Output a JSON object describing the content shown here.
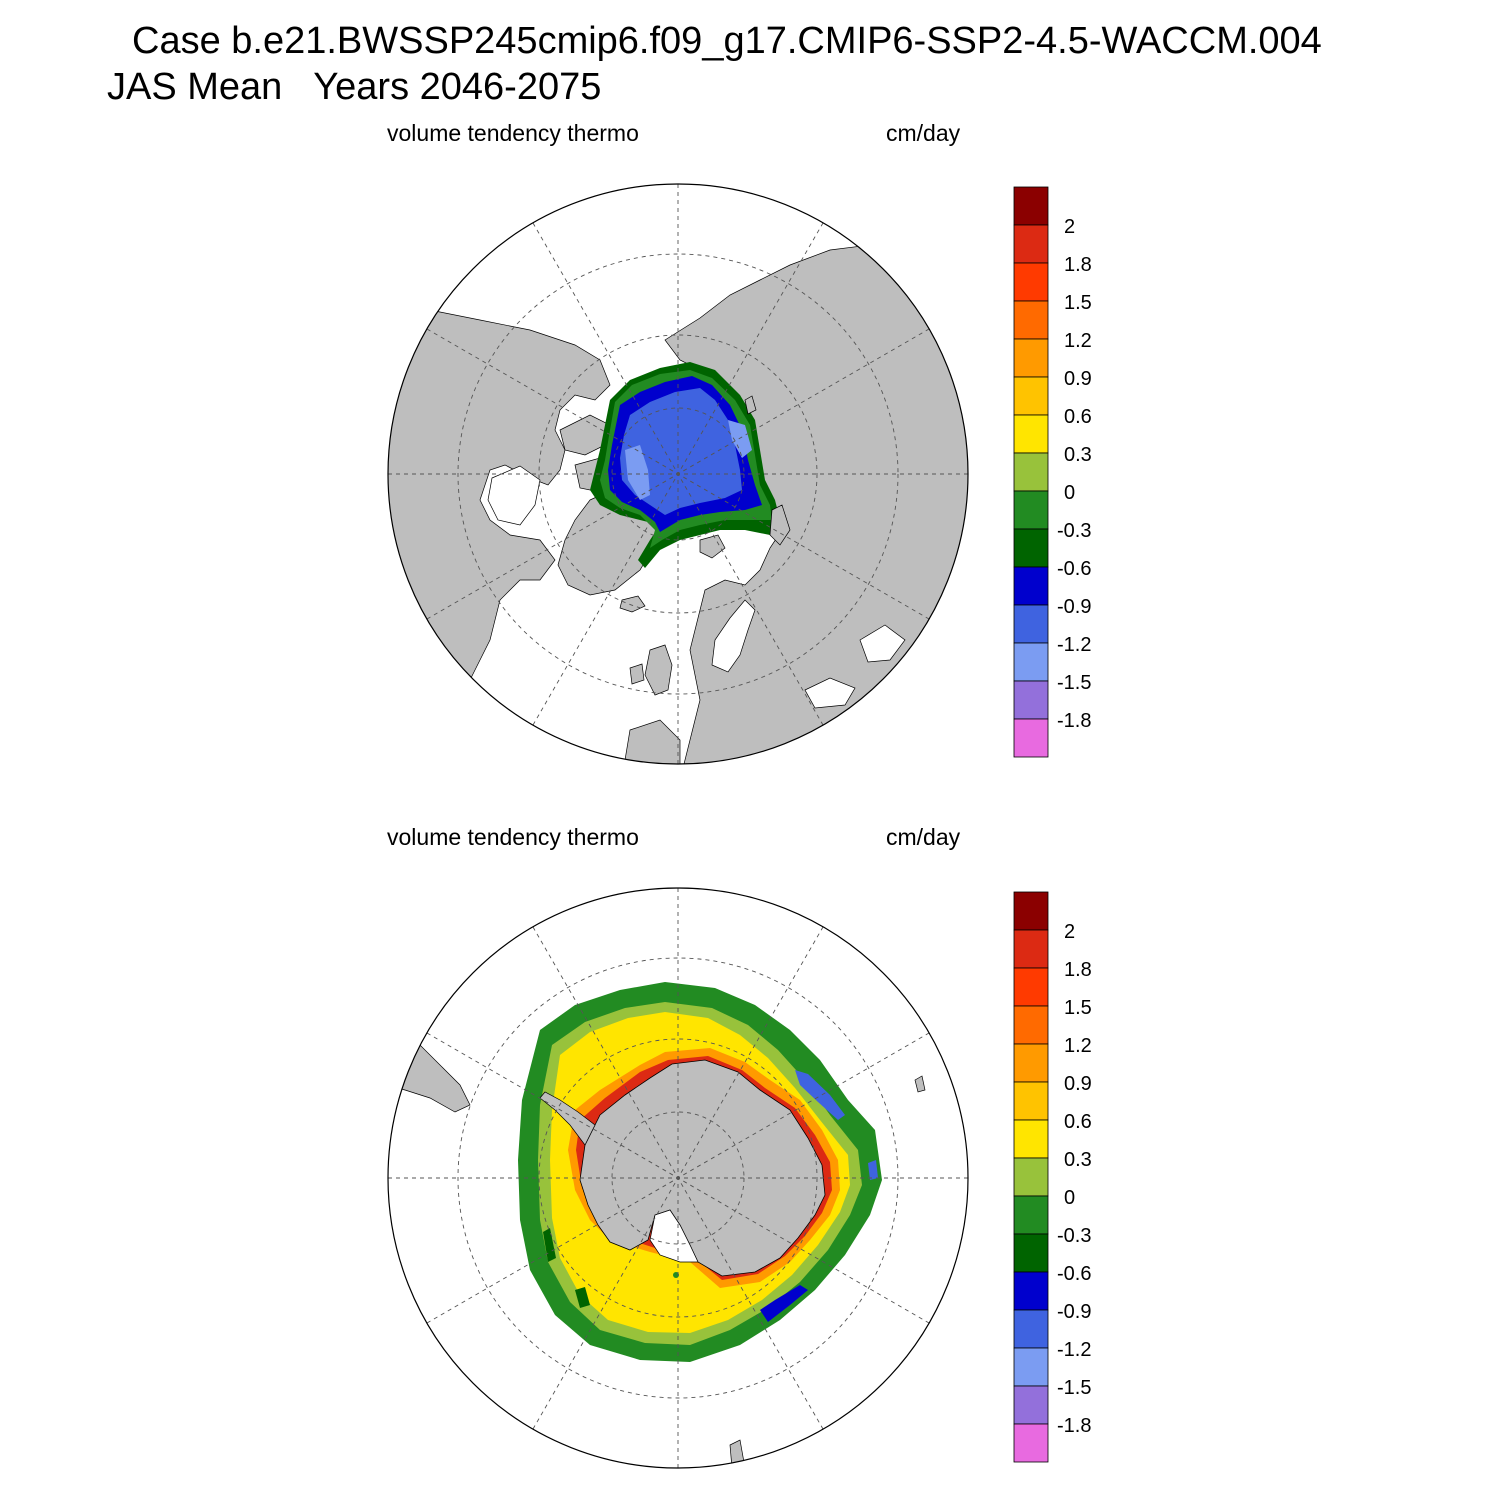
{
  "figure": {
    "title_line1": "Case b.e21.BWSSP245cmip6.f09_g17.CMIP6-SSP2-4.5-WACCM.004",
    "title_line2": "JAS Mean   Years 2046-2075"
  },
  "panels": [
    {
      "hemisphere": "north",
      "left_label": "volume tendency thermo",
      "right_label": "cm/day"
    },
    {
      "hemisphere": "south",
      "left_label": "volume tendency thermo",
      "right_label": "cm/day"
    }
  ],
  "colorbar": {
    "tick_labels": [
      "2",
      "1.8",
      "1.5",
      "1.2",
      "0.9",
      "0.6",
      "0.3",
      "0",
      "-0.3",
      "-0.6",
      "-0.9",
      "-1.2",
      "-1.5",
      "-1.8"
    ],
    "colors_top_to_bottom": [
      "#8b0000",
      "#dc2a13",
      "#ff3a00",
      "#ff6a00",
      "#ff9a00",
      "#ffc300",
      "#ffe500",
      "#98c23b",
      "#228b22",
      "#006400",
      "#0000cd",
      "#3f63e0",
      "#7b9cf2",
      "#9370db",
      "#e86ae0"
    ],
    "land_color": "#bebebe"
  },
  "chart_data": {
    "type": "heatmap",
    "variable": "volume tendency thermo",
    "units": "cm/day",
    "projection": "polar stereographic",
    "contour_levels": [
      -1.8,
      -1.5,
      -1.2,
      -0.9,
      -0.6,
      -0.3,
      0,
      0.3,
      0.6,
      0.9,
      1.2,
      1.5,
      1.8,
      2
    ],
    "panels": [
      {
        "hemisphere": "north",
        "field_range": [
          -1.2,
          -0.3
        ],
        "dominant_value": -1.2,
        "rim_values": [
          -0.9,
          -0.6,
          -0.3
        ]
      },
      {
        "hemisphere": "south",
        "field_range": [
          -0.9,
          2
        ],
        "dominant_value": 0.45,
        "rim_values": [
          0.9,
          1.5,
          2
        ],
        "outer_values": [
          -0.3,
          -0.6
        ]
      }
    ]
  }
}
